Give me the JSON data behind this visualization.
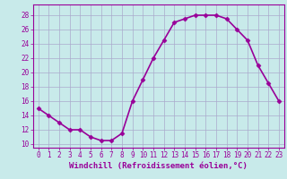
{
  "x": [
    0,
    1,
    2,
    3,
    4,
    5,
    6,
    7,
    8,
    9,
    10,
    11,
    12,
    13,
    14,
    15,
    16,
    17,
    18,
    19,
    20,
    21,
    22,
    23
  ],
  "y": [
    15,
    14,
    13,
    12,
    12,
    11,
    10.5,
    10.5,
    11.5,
    16,
    19,
    22,
    24.5,
    27,
    27.5,
    28,
    28,
    28,
    27.5,
    26,
    24.5,
    21,
    18.5,
    16
  ],
  "line_color": "#990099",
  "marker": "D",
  "marker_size": 2.5,
  "bg_color": "#c8eaea",
  "grid_color": "#aaaacc",
  "xlabel": "Windchill (Refroidissement éolien,°C)",
  "xlabel_fontsize": 6.5,
  "xlabel_color": "#990099",
  "ylabel_ticks": [
    10,
    12,
    14,
    16,
    18,
    20,
    22,
    24,
    26,
    28
  ],
  "ylim": [
    9.5,
    29.5
  ],
  "xlim": [
    -0.5,
    23.5
  ],
  "xtick_labels": [
    "0",
    "1",
    "2",
    "3",
    "4",
    "5",
    "6",
    "7",
    "8",
    "9",
    "10",
    "11",
    "12",
    "13",
    "14",
    "15",
    "16",
    "17",
    "18",
    "19",
    "20",
    "21",
    "22",
    "23"
  ],
  "tick_color": "#990099",
  "tick_fontsize": 5.5,
  "line_width": 1.2
}
